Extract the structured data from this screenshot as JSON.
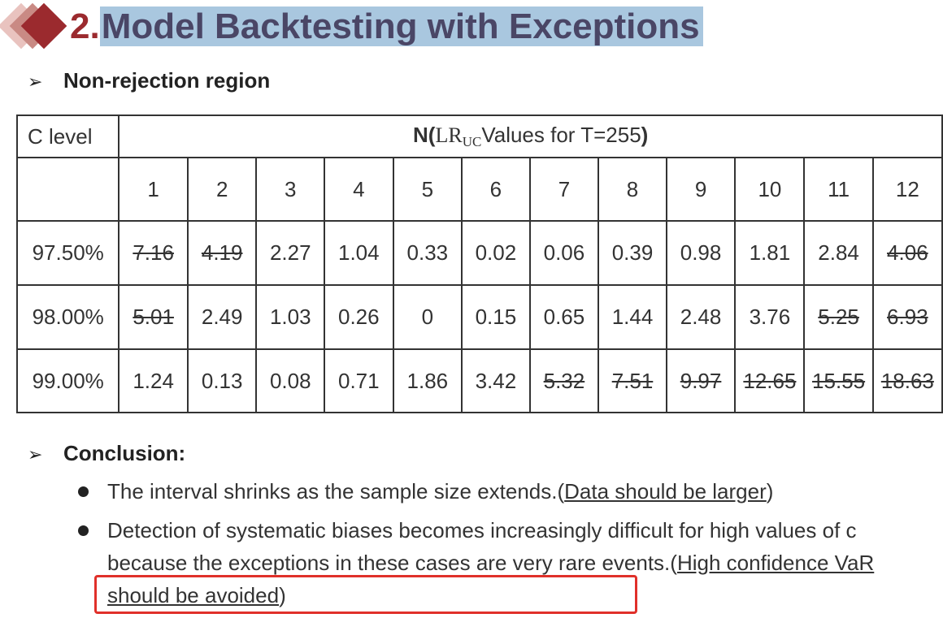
{
  "title": {
    "number": "2.",
    "text": "Model Backtesting with Exceptions"
  },
  "section1": {
    "arrow": "➢",
    "heading": "Non-rejection region"
  },
  "table": {
    "corner_label": "C level",
    "header_prefix": "N(",
    "header_lr": "LR",
    "header_sub": "UC",
    "header_suffix": "Values for T=255",
    "header_close": ")",
    "columns": [
      "1",
      "2",
      "3",
      "4",
      "5",
      "6",
      "7",
      "8",
      "9",
      "10",
      "11",
      "12"
    ],
    "rows": [
      {
        "label": "97.50%",
        "values": [
          "7.16",
          "4.19",
          "2.27",
          "1.04",
          "0.33",
          "0.02",
          "0.06",
          "0.39",
          "0.98",
          "1.81",
          "2.84",
          "4.06"
        ],
        "struck": [
          true,
          true,
          false,
          false,
          false,
          false,
          false,
          false,
          false,
          false,
          false,
          true
        ]
      },
      {
        "label": "98.00%",
        "values": [
          "5.01",
          "2.49",
          "1.03",
          "0.26",
          "0",
          "0.15",
          "0.65",
          "1.44",
          "2.48",
          "3.76",
          "5.25",
          "6.93"
        ],
        "struck": [
          true,
          false,
          false,
          false,
          false,
          false,
          false,
          false,
          false,
          false,
          true,
          true
        ]
      },
      {
        "label": "99.00%",
        "values": [
          "1.24",
          "0.13",
          "0.08",
          "0.71",
          "1.86",
          "3.42",
          "5.32",
          "7.51",
          "9.97",
          "12.65",
          "15.55",
          "18.63"
        ],
        "struck": [
          false,
          false,
          false,
          false,
          false,
          false,
          true,
          true,
          true,
          true,
          true,
          true
        ]
      }
    ]
  },
  "section2": {
    "arrow": "➢",
    "heading": "Conclusion:"
  },
  "conclusions": [
    {
      "text": "The interval shrinks as the sample size extends.",
      "paren_open": "(",
      "note": "Data should be larger",
      "paren_close": ")"
    },
    {
      "text": "Detection of systematic biases becomes increasingly difficult for high values of c because the exceptions in these cases are very rare events.",
      "paren_open": "(",
      "note": "High confidence VaR should be avoided",
      "paren_close": ")"
    }
  ],
  "colors": {
    "accent": "#9b2a2e",
    "title_text": "#4a4666",
    "highlight": "#a9c7df",
    "red_box": "#e0302a"
  }
}
